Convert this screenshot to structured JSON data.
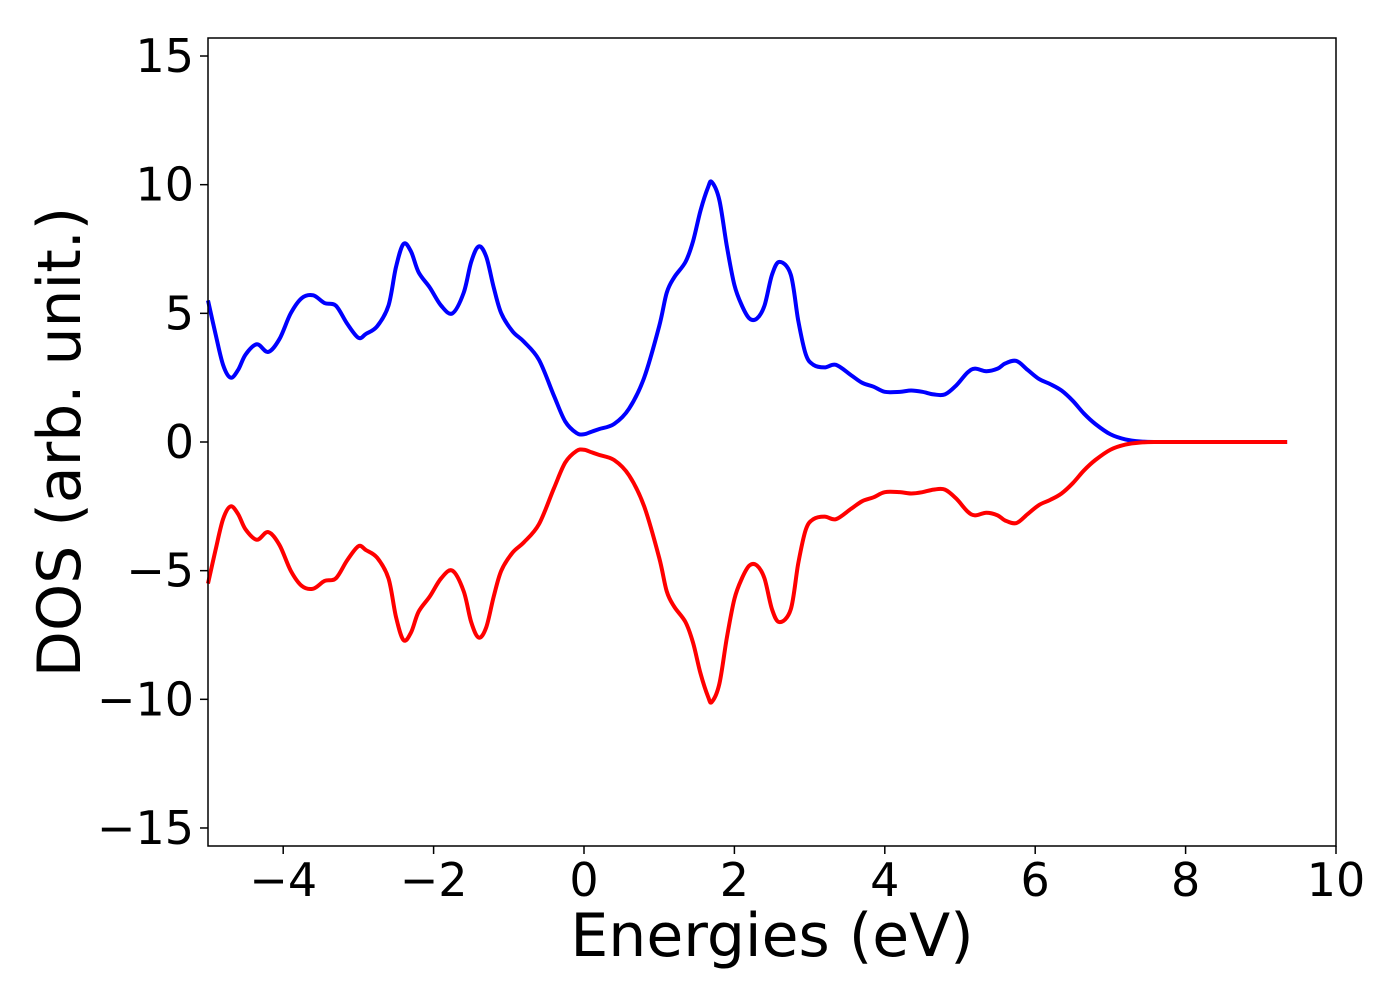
{
  "chart_data": {
    "type": "line",
    "xlabel": "Energies (eV)",
    "ylabel": "DOS (arb. unit.)",
    "xlim": [
      -5,
      10
    ],
    "ylim": [
      -15.7,
      15.7
    ],
    "xticks": [
      -4,
      -2,
      0,
      2,
      4,
      6,
      8,
      10
    ],
    "xtick_labels": [
      "−4",
      "−2",
      "0",
      "2",
      "4",
      "6",
      "8",
      "10"
    ],
    "yticks": [
      15,
      10,
      5,
      0,
      -5,
      -10,
      -15
    ],
    "ytick_labels": [
      "15",
      "10",
      "5",
      "0",
      "−5",
      "−10",
      "−15"
    ],
    "grid": false,
    "legend": "none",
    "series": [
      {
        "color": "#0000ff",
        "x": [
          -5.0,
          -4.9,
          -4.8,
          -4.7,
          -4.6,
          -4.5,
          -4.35,
          -4.2,
          -4.05,
          -3.9,
          -3.75,
          -3.6,
          -3.45,
          -3.3,
          -3.15,
          -3.0,
          -2.9,
          -2.75,
          -2.6,
          -2.5,
          -2.4,
          -2.3,
          -2.2,
          -2.05,
          -1.9,
          -1.75,
          -1.6,
          -1.5,
          -1.4,
          -1.3,
          -1.2,
          -1.1,
          -0.95,
          -0.8,
          -0.6,
          -0.4,
          -0.25,
          -0.1,
          0.0,
          0.1,
          0.2,
          0.4,
          0.6,
          0.8,
          1.0,
          1.1,
          1.2,
          1.35,
          1.45,
          1.55,
          1.65,
          1.7,
          1.8,
          1.9,
          2.0,
          2.1,
          2.2,
          2.3,
          2.4,
          2.5,
          2.6,
          2.75,
          2.85,
          2.95,
          3.05,
          3.2,
          3.35,
          3.55,
          3.7,
          3.85,
          4.0,
          4.2,
          4.35,
          4.5,
          4.65,
          4.8,
          4.95,
          5.1,
          5.2,
          5.35,
          5.5,
          5.6,
          5.75,
          5.9,
          6.05,
          6.2,
          6.35,
          6.5,
          6.65,
          6.8,
          7.0,
          7.2,
          7.4,
          7.6,
          8.0,
          9.0,
          9.35
        ],
        "values": [
          5.5,
          4.2,
          3.0,
          2.5,
          2.8,
          3.4,
          3.8,
          3.5,
          4.0,
          5.0,
          5.6,
          5.7,
          5.4,
          5.3,
          4.6,
          4.05,
          4.2,
          4.5,
          5.3,
          6.8,
          7.7,
          7.4,
          6.6,
          6.0,
          5.3,
          5.0,
          5.8,
          7.0,
          7.6,
          7.2,
          6.0,
          5.0,
          4.3,
          3.9,
          3.2,
          1.8,
          0.8,
          0.35,
          0.3,
          0.4,
          0.5,
          0.7,
          1.3,
          2.5,
          4.5,
          5.8,
          6.4,
          7.0,
          7.8,
          9.0,
          9.9,
          10.1,
          9.4,
          7.6,
          6.1,
          5.3,
          4.8,
          4.8,
          5.3,
          6.5,
          7.0,
          6.5,
          4.7,
          3.4,
          3.0,
          2.9,
          3.0,
          2.6,
          2.3,
          2.15,
          1.95,
          1.95,
          2.0,
          1.95,
          1.85,
          1.85,
          2.2,
          2.7,
          2.85,
          2.75,
          2.85,
          3.05,
          3.15,
          2.8,
          2.45,
          2.25,
          2.0,
          1.6,
          1.1,
          0.7,
          0.3,
          0.1,
          0.02,
          0.0,
          0.0,
          0.0,
          0.0
        ]
      },
      {
        "color": "#ff0000",
        "x": [
          -5.0,
          -4.9,
          -4.8,
          -4.7,
          -4.6,
          -4.5,
          -4.35,
          -4.2,
          -4.05,
          -3.9,
          -3.75,
          -3.6,
          -3.45,
          -3.3,
          -3.15,
          -3.0,
          -2.9,
          -2.75,
          -2.6,
          -2.5,
          -2.4,
          -2.3,
          -2.2,
          -2.05,
          -1.9,
          -1.75,
          -1.6,
          -1.5,
          -1.4,
          -1.3,
          -1.2,
          -1.1,
          -0.95,
          -0.8,
          -0.6,
          -0.4,
          -0.25,
          -0.1,
          0.0,
          0.1,
          0.2,
          0.4,
          0.6,
          0.8,
          1.0,
          1.1,
          1.2,
          1.35,
          1.45,
          1.55,
          1.65,
          1.7,
          1.8,
          1.9,
          2.0,
          2.1,
          2.2,
          2.3,
          2.4,
          2.5,
          2.6,
          2.75,
          2.85,
          2.95,
          3.05,
          3.2,
          3.35,
          3.55,
          3.7,
          3.85,
          4.0,
          4.2,
          4.35,
          4.5,
          4.65,
          4.8,
          4.95,
          5.1,
          5.2,
          5.35,
          5.5,
          5.6,
          5.75,
          5.9,
          6.05,
          6.2,
          6.35,
          6.5,
          6.65,
          6.8,
          7.0,
          7.2,
          7.4,
          7.6,
          8.0,
          9.0,
          9.35
        ],
        "values": [
          -5.5,
          -4.2,
          -3.0,
          -2.5,
          -2.8,
          -3.4,
          -3.8,
          -3.5,
          -4.0,
          -5.0,
          -5.6,
          -5.7,
          -5.4,
          -5.3,
          -4.6,
          -4.05,
          -4.2,
          -4.5,
          -5.3,
          -6.8,
          -7.7,
          -7.4,
          -6.6,
          -6.0,
          -5.3,
          -5.0,
          -5.8,
          -7.0,
          -7.6,
          -7.2,
          -6.0,
          -5.0,
          -4.3,
          -3.9,
          -3.2,
          -1.8,
          -0.8,
          -0.35,
          -0.3,
          -0.4,
          -0.5,
          -0.7,
          -1.3,
          -2.5,
          -4.5,
          -5.8,
          -6.4,
          -7.0,
          -7.8,
          -9.0,
          -9.9,
          -10.1,
          -9.4,
          -7.6,
          -6.1,
          -5.3,
          -4.8,
          -4.8,
          -5.3,
          -6.5,
          -7.0,
          -6.5,
          -4.7,
          -3.4,
          -3.0,
          -2.9,
          -3.0,
          -2.6,
          -2.3,
          -2.15,
          -1.95,
          -1.95,
          -2.0,
          -1.95,
          -1.85,
          -1.85,
          -2.2,
          -2.7,
          -2.85,
          -2.75,
          -2.85,
          -3.05,
          -3.15,
          -2.8,
          -2.45,
          -2.25,
          -2.0,
          -1.6,
          -1.1,
          -0.7,
          -0.3,
          -0.1,
          -0.02,
          0.0,
          0.0,
          0.0,
          0.0
        ]
      }
    ]
  }
}
